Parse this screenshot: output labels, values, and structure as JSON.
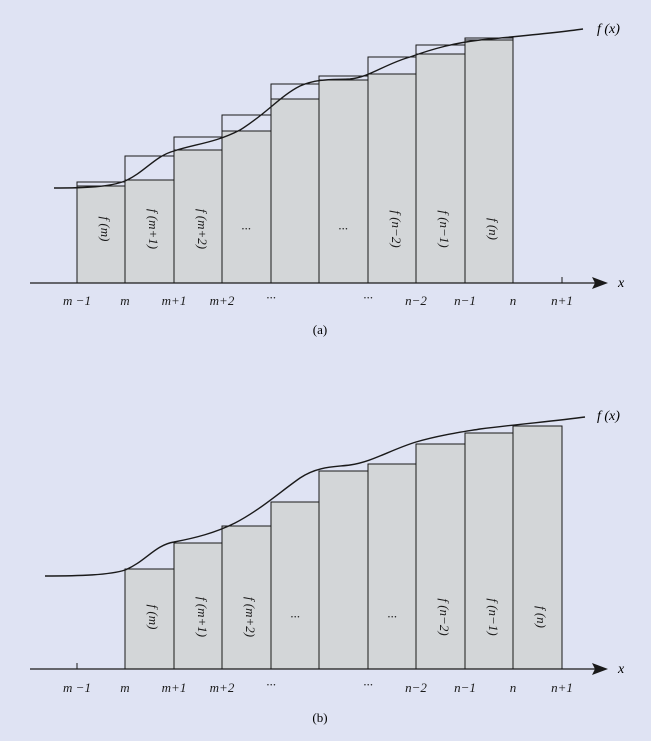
{
  "colors": {
    "background": "#dfe3f3",
    "bar_fill": "#d3d6d8",
    "stroke": "#1a1a1a"
  },
  "panel_a": {
    "caption": "(a)",
    "curve_label": "f (x)",
    "axis_label": "x",
    "tick_labels": [
      "m −1",
      "m",
      "m+1",
      "m+2",
      "···",
      "···",
      "n−2",
      "n−1",
      "n",
      "n+1"
    ],
    "bar_labels": [
      "f (m)",
      "f (m+1)",
      "f (m+2)",
      "···",
      "",
      "···",
      "f (n−2)",
      "f (n−1)",
      "f (n)"
    ]
  },
  "panel_b": {
    "caption": "(b)",
    "curve_label": "f (x)",
    "axis_label": "x",
    "tick_labels": [
      "m −1",
      "m",
      "m+1",
      "m+2",
      "···",
      "···",
      "n−2",
      "n−1",
      "n",
      "n+1"
    ],
    "bar_labels": [
      "f (m)",
      "f (m+1)",
      "f (m+2)",
      "···",
      "",
      "···",
      "f (n−2)",
      "f (n−1)",
      "f (n)"
    ]
  }
}
